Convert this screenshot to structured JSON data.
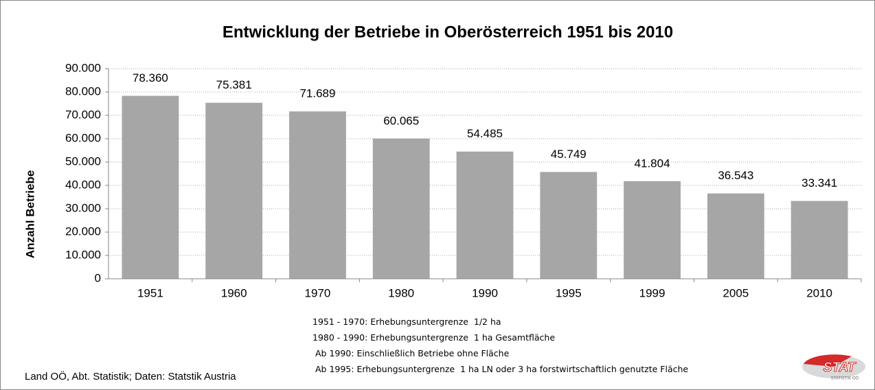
{
  "chart_data": {
    "type": "bar",
    "title": "Entwicklung der Betriebe in Oberösterreich 1951 bis 2010",
    "y_label": "Anzahl Betriebe",
    "categories": [
      "1951",
      "1960",
      "1970",
      "1980",
      "1990",
      "1995",
      "1999",
      "2005",
      "2010"
    ],
    "values": [
      78360,
      75381,
      71689,
      60065,
      54485,
      45749,
      41804,
      36543,
      33341
    ],
    "value_labels": [
      "78.360",
      "75.381",
      "71.689",
      "60.065",
      "54.485",
      "45.749",
      "41.804",
      "36.543",
      "33.341"
    ],
    "color": "#a6a6a6",
    "ylim": [
      0,
      90000
    ],
    "yticks": [
      0,
      {
        "value": 10000,
        "label": "10.000"
      },
      {
        "value": 20000,
        "label": "20.000"
      },
      {
        "value": 30000,
        "label": "30.000"
      },
      {
        "value": 40000,
        "label": "40.000"
      },
      {
        "value": 50000,
        "label": "50.000"
      },
      {
        "value": 60000,
        "label": "60.000"
      },
      {
        "value": 70000,
        "label": "70.000"
      },
      {
        "value": 80000,
        "label": "80.000"
      },
      {
        "value": 90000,
        "label": "90.000"
      }
    ],
    "grid": true,
    "source": "Land OÖ, Abt. Statistik; Daten: Statstik Austria",
    "notes": [
      "1951 - 1970: Erhebungsuntergrenze  1/2 ha",
      "1980 - 1990: Erhebungsuntergrenze  1 ha Gesamtfläche",
      " Ab 1990: Einschließlich Betriebe ohne Fläche",
      " Ab 1995: Erhebungsuntergrenze  1 ha LN oder 3 ha forstwirtschaftlich genutzte Fläche"
    ]
  },
  "logo": {
    "text": "STAT",
    "subtext": "STATISTIK OÖ"
  }
}
